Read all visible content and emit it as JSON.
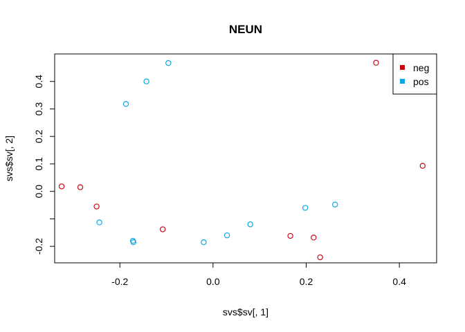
{
  "chart_data": {
    "type": "scatter",
    "title": "NEUN",
    "xlabel": "svs$sv[, 1]",
    "ylabel": "svs$sv[, 2]",
    "xlim": [
      -0.34,
      0.48
    ],
    "ylim": [
      -0.26,
      0.5
    ],
    "x_ticks": [
      -0.2,
      0.0,
      0.2,
      0.4
    ],
    "x_tick_labels": [
      "-0.2",
      "0.0",
      "0.2",
      "0.4"
    ],
    "y_ticks": [
      -0.2,
      -0.1,
      0.0,
      0.1,
      0.2,
      0.3,
      0.4
    ],
    "y_tick_labels": [
      "-0.2",
      "",
      "0.0",
      "0.1",
      "0.2",
      "0.3",
      "0.4"
    ],
    "grid": false,
    "legend_position": "top-right",
    "marker": "open-circle",
    "series": [
      {
        "name": "neg",
        "color": "#C80813",
        "points": [
          [
            -0.325,
            0.018
          ],
          [
            -0.285,
            0.015
          ],
          [
            -0.25,
            -0.055
          ],
          [
            -0.108,
            -0.138
          ],
          [
            0.166,
            -0.162
          ],
          [
            0.216,
            -0.168
          ],
          [
            0.23,
            -0.24
          ],
          [
            0.35,
            0.468
          ],
          [
            0.45,
            0.093
          ]
        ]
      },
      {
        "name": "pos",
        "color": "#0BA6E3",
        "points": [
          [
            -0.244,
            -0.113
          ],
          [
            -0.172,
            -0.18
          ],
          [
            -0.171,
            -0.185
          ],
          [
            -0.187,
            0.318
          ],
          [
            -0.143,
            0.4
          ],
          [
            -0.096,
            0.467
          ],
          [
            -0.02,
            -0.185
          ],
          [
            0.03,
            -0.16
          ],
          [
            0.08,
            -0.12
          ],
          [
            0.198,
            -0.06
          ],
          [
            0.262,
            -0.048
          ]
        ]
      }
    ]
  }
}
